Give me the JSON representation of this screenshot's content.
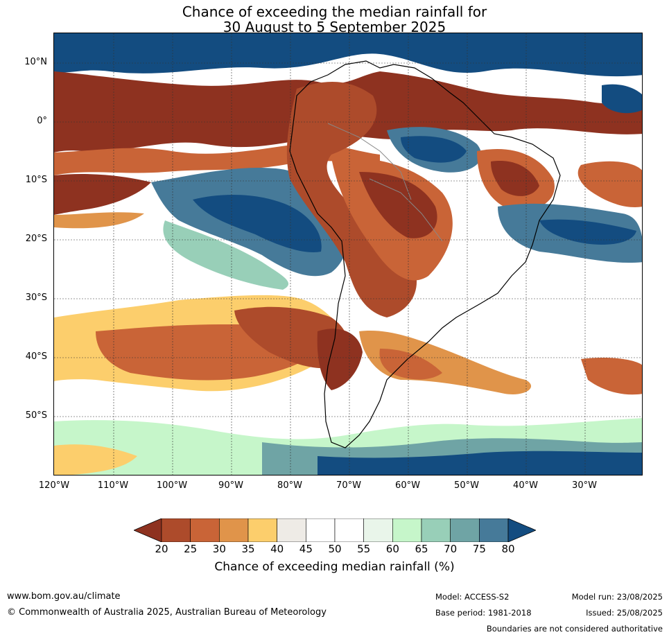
{
  "title": {
    "line1": "Chance of exceeding the median rainfall for",
    "line2": "30 August to 5 September 2025"
  },
  "lat_labels": [
    "10°N",
    "0°",
    "10°S",
    "20°S",
    "30°S",
    "40°S",
    "50°S"
  ],
  "lon_labels": [
    "120°W",
    "110°W",
    "100°W",
    "90°W",
    "80°W",
    "70°W",
    "60°W",
    "50°W",
    "40°W",
    "30°W"
  ],
  "colorbar": {
    "ticks": [
      "20",
      "25",
      "30",
      "35",
      "40",
      "45",
      "50",
      "55",
      "60",
      "65",
      "70",
      "75",
      "80"
    ],
    "colors": [
      "#8e3220",
      "#ad4b2b",
      "#c96437",
      "#e0944a",
      "#fcce6c",
      "#eeebe6",
      "#ffffff",
      "#ffffff",
      "#e9f5ea",
      "#c6f6ca",
      "#98cfb8",
      "#6fa4a5",
      "#467a99",
      "#134c80"
    ],
    "label": "Chance of exceeding median rainfall (%)"
  },
  "footer": {
    "url": "www.bom.gov.au/climate",
    "copyright": "© Commonwealth of Australia 2025, Australian Bureau of Meteorology",
    "model": "Model: ACCESS-S2",
    "base_period": "Base period: 1981-2018",
    "model_run": "Model run: 23/08/2025",
    "issued": "Issued: 25/08/2025",
    "disclaimer": "Boundaries are not considered authoritative"
  }
}
